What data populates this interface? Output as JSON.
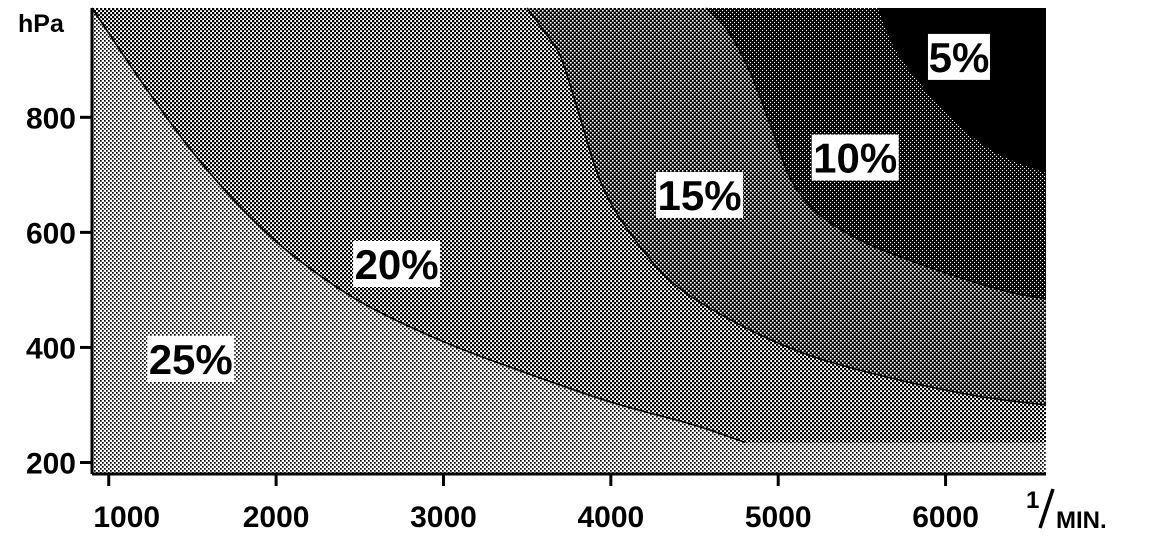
{
  "chart_data": {
    "type": "area",
    "title": "",
    "xlabel": "1/MIN.",
    "xlabel_numerator": "1",
    "xlabel_denominator": "MIN.",
    "ylabel": "hPa",
    "xlim": [
      900,
      6600
    ],
    "ylim": [
      180,
      990
    ],
    "x_ticks": [
      1000,
      2000,
      3000,
      4000,
      5000,
      6000
    ],
    "x_tick_labels": [
      "1000",
      "2000",
      "3000",
      "4000",
      "5000",
      "6000"
    ],
    "y_ticks": [
      200,
      400,
      600,
      800
    ],
    "y_tick_labels": [
      "200",
      "400",
      "600",
      "800"
    ],
    "grid": false,
    "legend": "none",
    "fill_style": "halftone patterns, darker toward high speed and high pressure",
    "boundaries": [
      {
        "separates": [
          "25%",
          "20%"
        ],
        "x": [
          900,
          1200,
          1500,
          1800,
          2100,
          2500,
          3000,
          3500,
          4000,
          4500,
          4800
        ],
        "y": [
          990,
          860,
          740,
          640,
          560,
          480,
          410,
          355,
          305,
          265,
          235
        ]
      },
      {
        "separates": [
          "20%",
          "15%"
        ],
        "x": [
          3500,
          3600,
          3700,
          3800,
          3950,
          4150,
          4400,
          4800,
          5200,
          5700,
          6200,
          6600
        ],
        "y": [
          990,
          950,
          905,
          815,
          680,
          585,
          505,
          435,
          385,
          345,
          315,
          300
        ]
      },
      {
        "separates": [
          "15%",
          "10%"
        ],
        "x": [
          4570,
          4700,
          4830,
          4950,
          5080,
          5250,
          5500,
          5800,
          6100,
          6400,
          6600
        ],
        "y": [
          990,
          950,
          880,
          790,
          690,
          630,
          585,
          550,
          520,
          495,
          485
        ]
      },
      {
        "separates": [
          "10%",
          "5%"
        ],
        "x": [
          5600,
          5700,
          5850,
          6000,
          6150,
          6300,
          6450,
          6600
        ],
        "y": [
          990,
          920,
          860,
          810,
          770,
          740,
          720,
          705
        ]
      }
    ],
    "regions": [
      {
        "label": "25%",
        "label_x": 1490,
        "label_y": 380
      },
      {
        "label": "20%",
        "label_x": 2720,
        "label_y": 545
      },
      {
        "label": "15%",
        "label_x": 4530,
        "label_y": 665
      },
      {
        "label": "10%",
        "label_x": 5460,
        "label_y": 730
      },
      {
        "label": "5%",
        "label_x": 6080,
        "label_y": 905
      }
    ]
  }
}
